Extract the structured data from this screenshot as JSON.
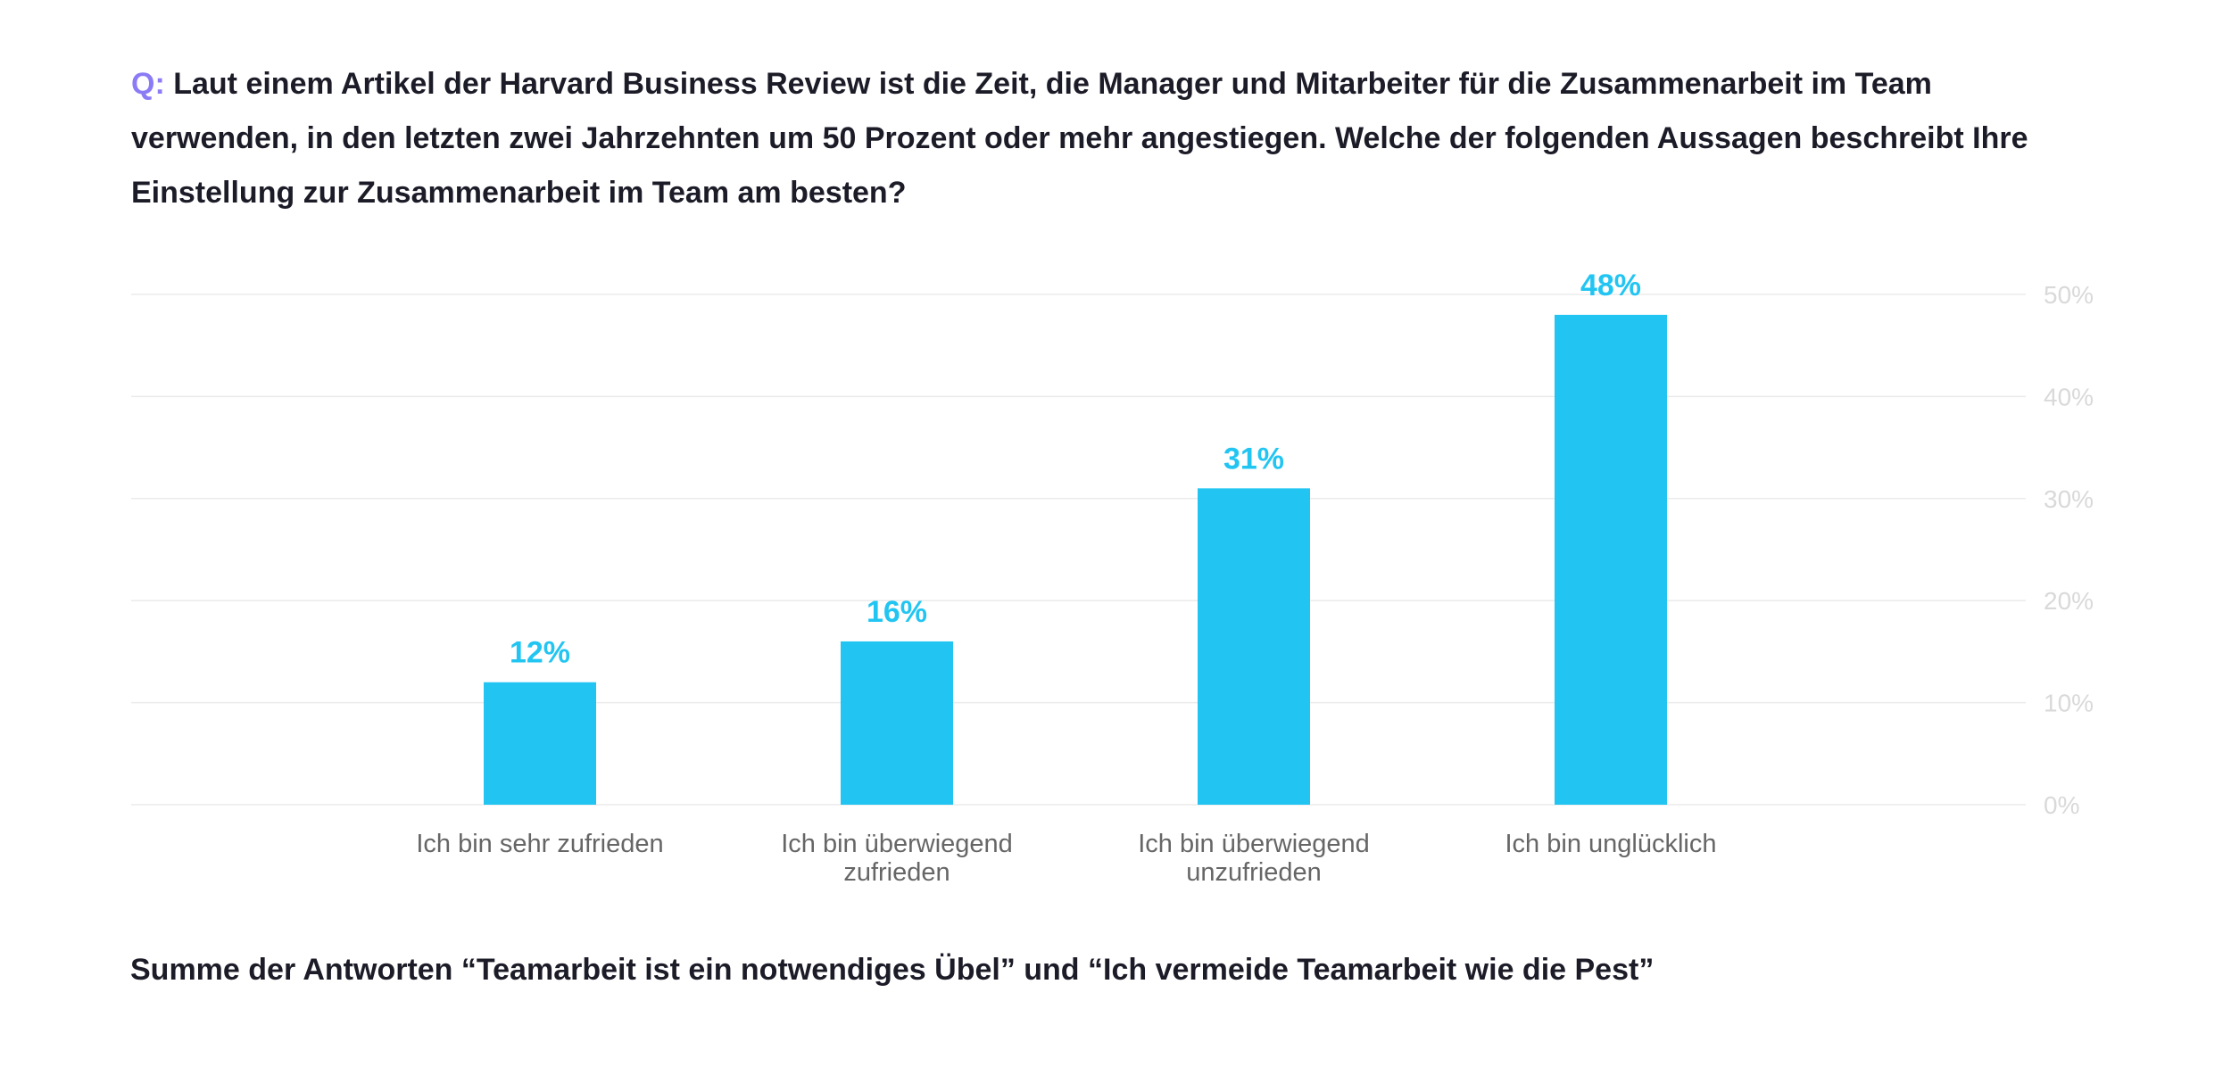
{
  "question": {
    "prefix": "Q:",
    "text": "Laut einem Artikel der Harvard Business Review ist die Zeit, die Manager und Mitarbeiter für die Zusammenarbeit im Team verwenden, in den letzten zwei Jahrzehnten um 50 Prozent oder mehr angestiegen. Welche der folgenden Aussagen beschreibt Ihre Einstellung zur Zusammenarbeit im Team am besten?"
  },
  "chart_data": {
    "type": "bar",
    "categories": [
      [
        "Ich bin sehr zufrieden"
      ],
      [
        "Ich bin überwiegend",
        "zufrieden"
      ],
      [
        "Ich bin überwiegend",
        "unzufrieden"
      ],
      [
        "Ich bin unglücklich"
      ]
    ],
    "values": [
      12,
      16,
      31,
      48
    ],
    "data_labels": [
      "12%",
      "16%",
      "31%",
      "48%"
    ],
    "y_ticks": [
      0,
      10,
      20,
      30,
      40,
      50
    ],
    "y_tick_labels": [
      "0%",
      "10%",
      "20%",
      "30%",
      "40%",
      "50%"
    ],
    "ylim": [
      0,
      50
    ],
    "y_axis_position": "right",
    "grid": true,
    "bar_color": "#22c5f2",
    "label_color": "#22c5f2",
    "tick_color": "#d9d9d9",
    "grid_color": "#ebebeb",
    "category_color": "#666666"
  },
  "footnote": "Summe der Antworten “Teamarbeit ist ein notwendiges Übel” und “Ich vermeide Teamarbeit wie die Pest”"
}
